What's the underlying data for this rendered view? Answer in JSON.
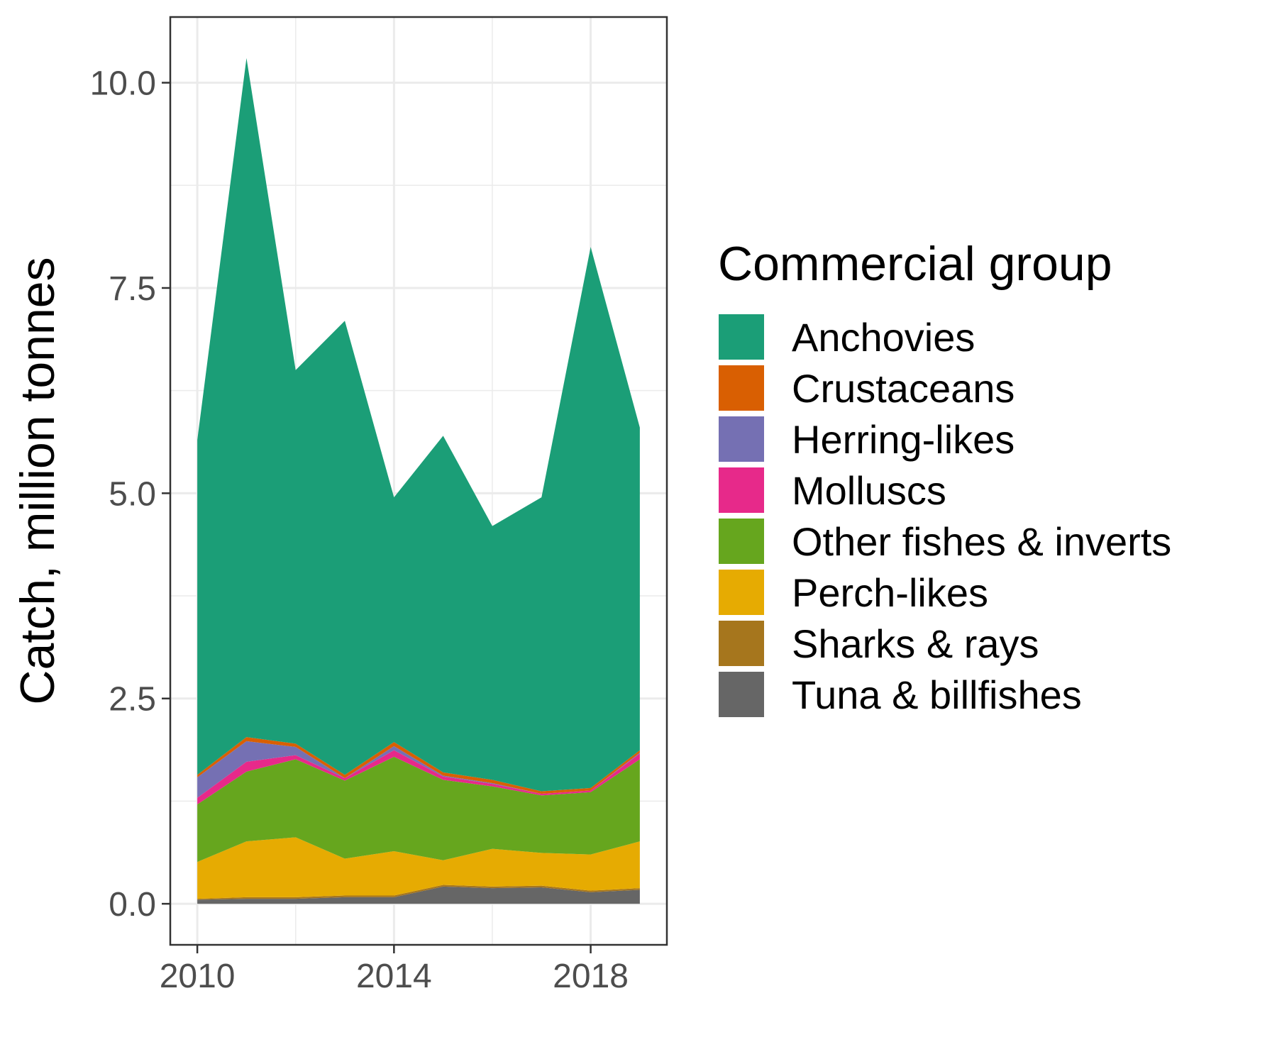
{
  "chart_data": {
    "type": "area",
    "stacked": true,
    "title": "",
    "xlabel": "",
    "ylabel": "Catch, million tonnes",
    "xlim": [
      2009.45,
      2019.55
    ],
    "ylim": [
      -0.5,
      10.8
    ],
    "x_ticks": [
      2010,
      2014,
      2018
    ],
    "y_ticks": [
      0,
      2.5,
      5,
      7.5,
      10
    ],
    "y_tick_labels": [
      "0.0",
      "2.5",
      "5.0",
      "7.5",
      "10.0"
    ],
    "grid": true,
    "legend_position": "right",
    "legend_title": "Commercial group",
    "x": [
      2010,
      2011,
      2012,
      2013,
      2014,
      2015,
      2016,
      2017,
      2018,
      2019
    ],
    "series": [
      {
        "name": "Tuna & billfishes",
        "color": "#666666",
        "values": [
          0.05,
          0.06,
          0.06,
          0.08,
          0.08,
          0.21,
          0.19,
          0.2,
          0.14,
          0.17
        ]
      },
      {
        "name": "Sharks & rays",
        "color": "#A6761D",
        "values": [
          0.01,
          0.02,
          0.02,
          0.02,
          0.02,
          0.02,
          0.02,
          0.02,
          0.02,
          0.02
        ]
      },
      {
        "name": "Perch-likes",
        "color": "#E6AB02",
        "values": [
          0.45,
          0.68,
          0.73,
          0.45,
          0.54,
          0.3,
          0.46,
          0.4,
          0.44,
          0.57
        ]
      },
      {
        "name": "Other fishes & inverts",
        "color": "#66A61E",
        "values": [
          0.7,
          0.85,
          0.95,
          0.95,
          1.15,
          0.98,
          0.76,
          0.7,
          0.76,
          1.0
        ]
      },
      {
        "name": "Molluscs",
        "color": "#E7298A",
        "values": [
          0.08,
          0.12,
          0.05,
          0.03,
          0.08,
          0.04,
          0.03,
          0.02,
          0.02,
          0.07
        ]
      },
      {
        "name": "Herring-likes",
        "color": "#7570B3",
        "values": [
          0.25,
          0.25,
          0.1,
          0.0,
          0.05,
          0.01,
          0.01,
          0.0,
          0.0,
          0.01
        ]
      },
      {
        "name": "Crustaceans",
        "color": "#D95F02",
        "values": [
          0.03,
          0.05,
          0.04,
          0.04,
          0.05,
          0.04,
          0.04,
          0.03,
          0.03,
          0.03
        ]
      },
      {
        "name": "Anchovies",
        "color": "#1B9E77",
        "values": [
          4.08,
          8.27,
          4.55,
          5.53,
          2.98,
          4.1,
          3.09,
          3.58,
          6.59,
          3.93
        ]
      }
    ],
    "legend_order": [
      "Anchovies",
      "Crustaceans",
      "Herring-likes",
      "Molluscs",
      "Other fishes & inverts",
      "Perch-likes",
      "Sharks & rays",
      "Tuna & billfishes"
    ]
  }
}
